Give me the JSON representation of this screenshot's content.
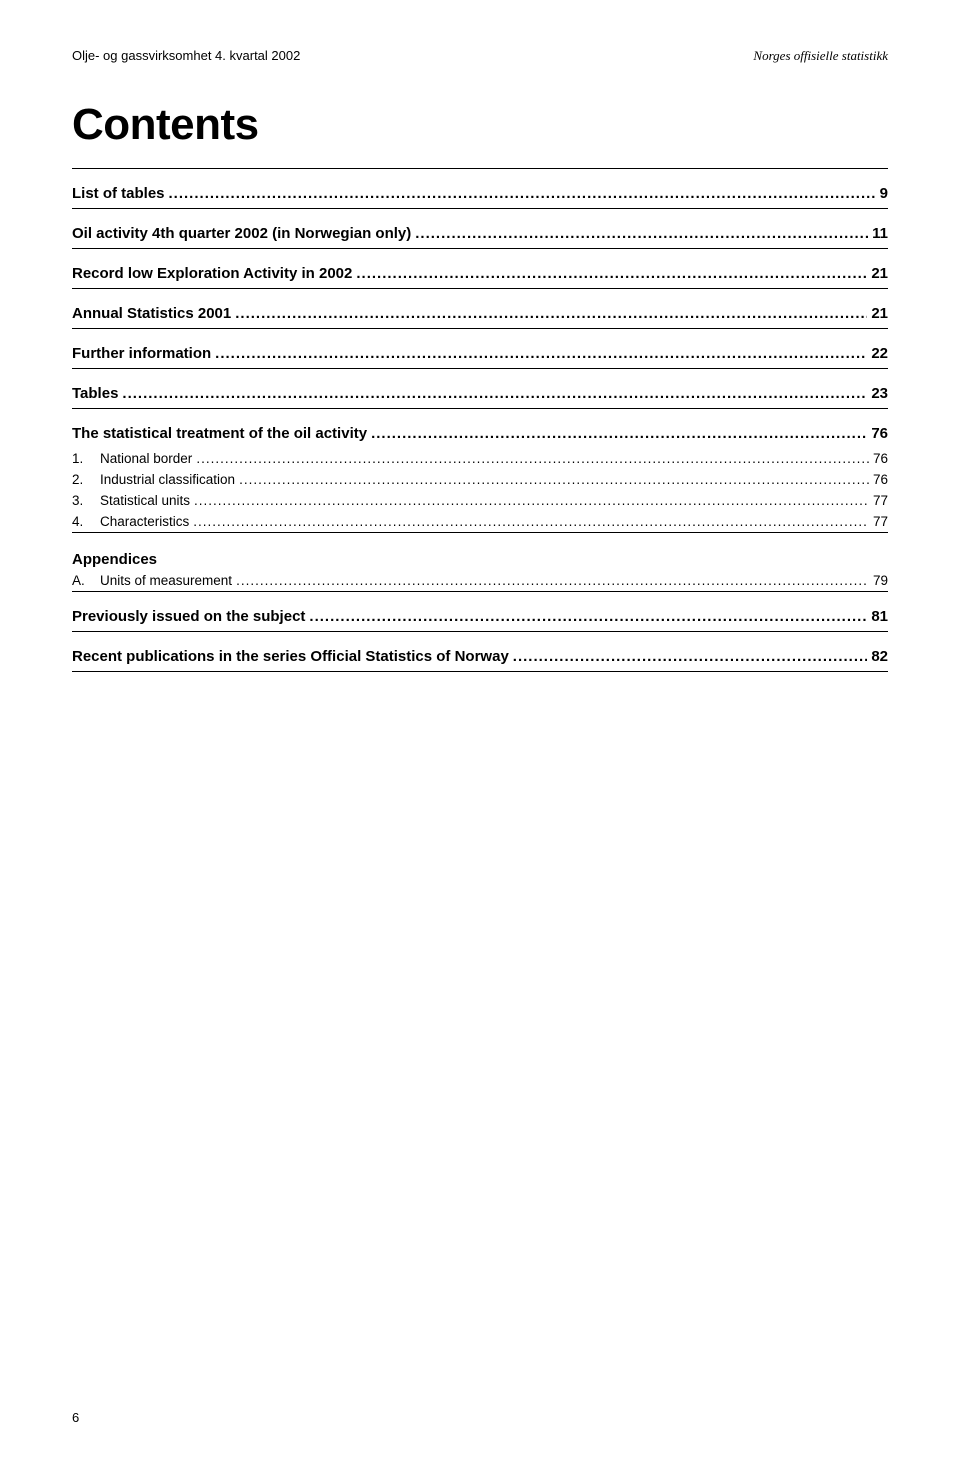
{
  "header": {
    "left": "Olje- og gassvirksomhet 4. kvartal 2002",
    "right": "Norges offisielle statistikk"
  },
  "title": "Contents",
  "sections": [
    {
      "label": "List of tables",
      "page": "9",
      "bold": true,
      "rule_top": true,
      "rule_bottom": true
    },
    {
      "label": "Oil activity 4th quarter 2002 (in Norwegian only)",
      "page": "11",
      "bold": true,
      "rule_top": false,
      "rule_bottom": true
    },
    {
      "label": "Record low Exploration Activity in 2002",
      "page": "21",
      "bold": true,
      "rule_top": false,
      "rule_bottom": true
    },
    {
      "label": "Annual Statistics 2001",
      "page": "21",
      "bold": true,
      "rule_top": false,
      "rule_bottom": true
    },
    {
      "label": "Further information",
      "page": "22",
      "bold": true,
      "rule_top": false,
      "rule_bottom": true
    },
    {
      "label": "Tables",
      "page": "23",
      "bold": true,
      "rule_top": false,
      "rule_bottom": true
    },
    {
      "label": "The statistical treatment of the oil activity",
      "page": "76",
      "bold": true,
      "rule_top": false,
      "rule_bottom": true,
      "subs": [
        {
          "num": "1.",
          "label": "National border",
          "page": "76"
        },
        {
          "num": "2.",
          "label": "Industrial classification",
          "page": "76"
        },
        {
          "num": "3.",
          "label": "Statistical units",
          "page": "77"
        },
        {
          "num": "4.",
          "label": "Characteristics",
          "page": "77"
        }
      ]
    }
  ],
  "appendices": {
    "title": "Appendices",
    "items": [
      {
        "num": "A.",
        "label": "Units of measurement",
        "page": "79"
      }
    ]
  },
  "tail_sections": [
    {
      "label": "Previously issued on the subject",
      "page": "81",
      "bold": true
    },
    {
      "label": "Recent publications in the series Official Statistics of Norway",
      "page": "82",
      "bold": true
    }
  ],
  "page_number": "6",
  "style": {
    "background": "#ffffff",
    "text_color": "#000000",
    "title_fontsize": 44,
    "bold_row_fontsize": 15,
    "sub_row_fontsize": 13.5,
    "header_fontsize": 13,
    "rule_color": "#000000",
    "dots_char": "."
  }
}
